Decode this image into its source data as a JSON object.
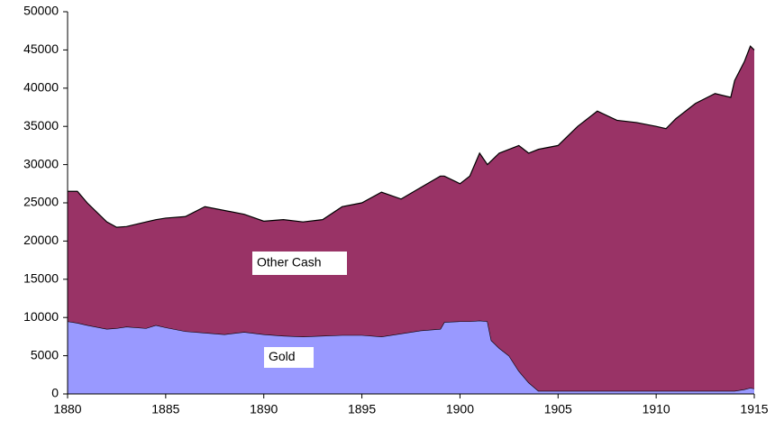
{
  "chart_data": {
    "type": "stacked_area",
    "x": [
      1880,
      1880.5,
      1881,
      1882,
      1882.5,
      1883,
      1884,
      1884.5,
      1885,
      1886,
      1887,
      1888,
      1889,
      1890,
      1891,
      1892,
      1893,
      1894,
      1895,
      1896,
      1897,
      1898,
      1899,
      1899.2,
      1900,
      1900.5,
      1901,
      1901.4,
      1901.6,
      1902,
      1902.5,
      1903,
      1903.5,
      1904,
      1905,
      1906,
      1907,
      1908,
      1909,
      1910,
      1910.5,
      1911,
      1912,
      1913,
      1913.8,
      1914,
      1914.5,
      1914.8,
      1915
    ],
    "series": [
      {
        "name": "Gold",
        "color": "#9999ff",
        "values": [
          9500,
          9300,
          9000,
          8500,
          8600,
          8800,
          8600,
          9000,
          8700,
          8200,
          8000,
          7800,
          8100,
          7800,
          7600,
          7500,
          7600,
          7700,
          7700,
          7500,
          7900,
          8300,
          8500,
          9400,
          9500,
          9500,
          9600,
          9500,
          7000,
          6000,
          5000,
          3000,
          1500,
          400,
          400,
          400,
          400,
          400,
          400,
          400,
          400,
          400,
          400,
          400,
          400,
          400,
          600,
          800,
          700
        ]
      },
      {
        "name": "Other Cash",
        "color": "#993366",
        "values": [
          17000,
          17200,
          16000,
          14000,
          13200,
          13100,
          13900,
          13800,
          14300,
          15000,
          16500,
          16200,
          15400,
          14800,
          15200,
          15000,
          15200,
          16800,
          17300,
          18900,
          17600,
          18700,
          20000,
          19100,
          18000,
          19000,
          21900,
          20500,
          23500,
          25500,
          27000,
          29500,
          30000,
          31600,
          32100,
          34600,
          36600,
          35400,
          35100,
          34600,
          34300,
          35600,
          37600,
          38900,
          38400,
          40600,
          42900,
          44700,
          44300
        ]
      }
    ],
    "xlim": [
      1880,
      1915
    ],
    "xticks": [
      1880,
      1885,
      1890,
      1895,
      1900,
      1905,
      1910,
      1915
    ],
    "ylim": [
      0,
      50000
    ],
    "yticks": [
      0,
      5000,
      10000,
      15000,
      20000,
      25000,
      30000,
      35000,
      40000,
      45000,
      50000
    ]
  }
}
